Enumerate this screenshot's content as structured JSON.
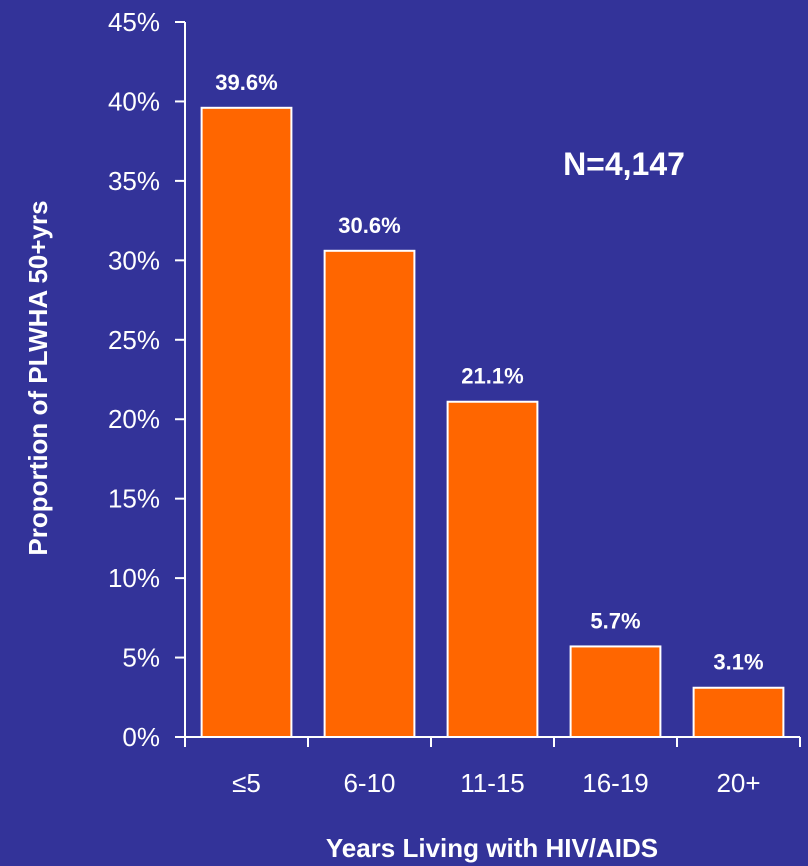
{
  "chart_data": {
    "type": "bar",
    "categories": [
      "≤5",
      "6-10",
      "11-15",
      "16-19",
      "20+"
    ],
    "values": [
      39.6,
      30.6,
      21.1,
      5.7,
      3.1
    ],
    "value_labels": [
      "39.6%",
      "30.6%",
      "21.1%",
      "5.7%",
      "3.1%"
    ],
    "xlabel": "Years Living with HIV/AIDS",
    "ylabel": "Proportion of PLWHA 50+yrs",
    "ylim": [
      0,
      45
    ],
    "y_ticks": [
      0,
      5,
      10,
      15,
      20,
      25,
      30,
      35,
      40,
      45
    ],
    "y_tick_labels": [
      "0%",
      "5%",
      "10%",
      "15%",
      "20%",
      "25%",
      "30%",
      "35%",
      "40%",
      "45%"
    ],
    "annotation": "N=4,147",
    "grid": false,
    "colors": {
      "background": "#333399",
      "bar_fill": "#ff6600",
      "bar_stroke": "#ffffff",
      "text": "#ffffff",
      "axis": "#ffffff"
    }
  }
}
